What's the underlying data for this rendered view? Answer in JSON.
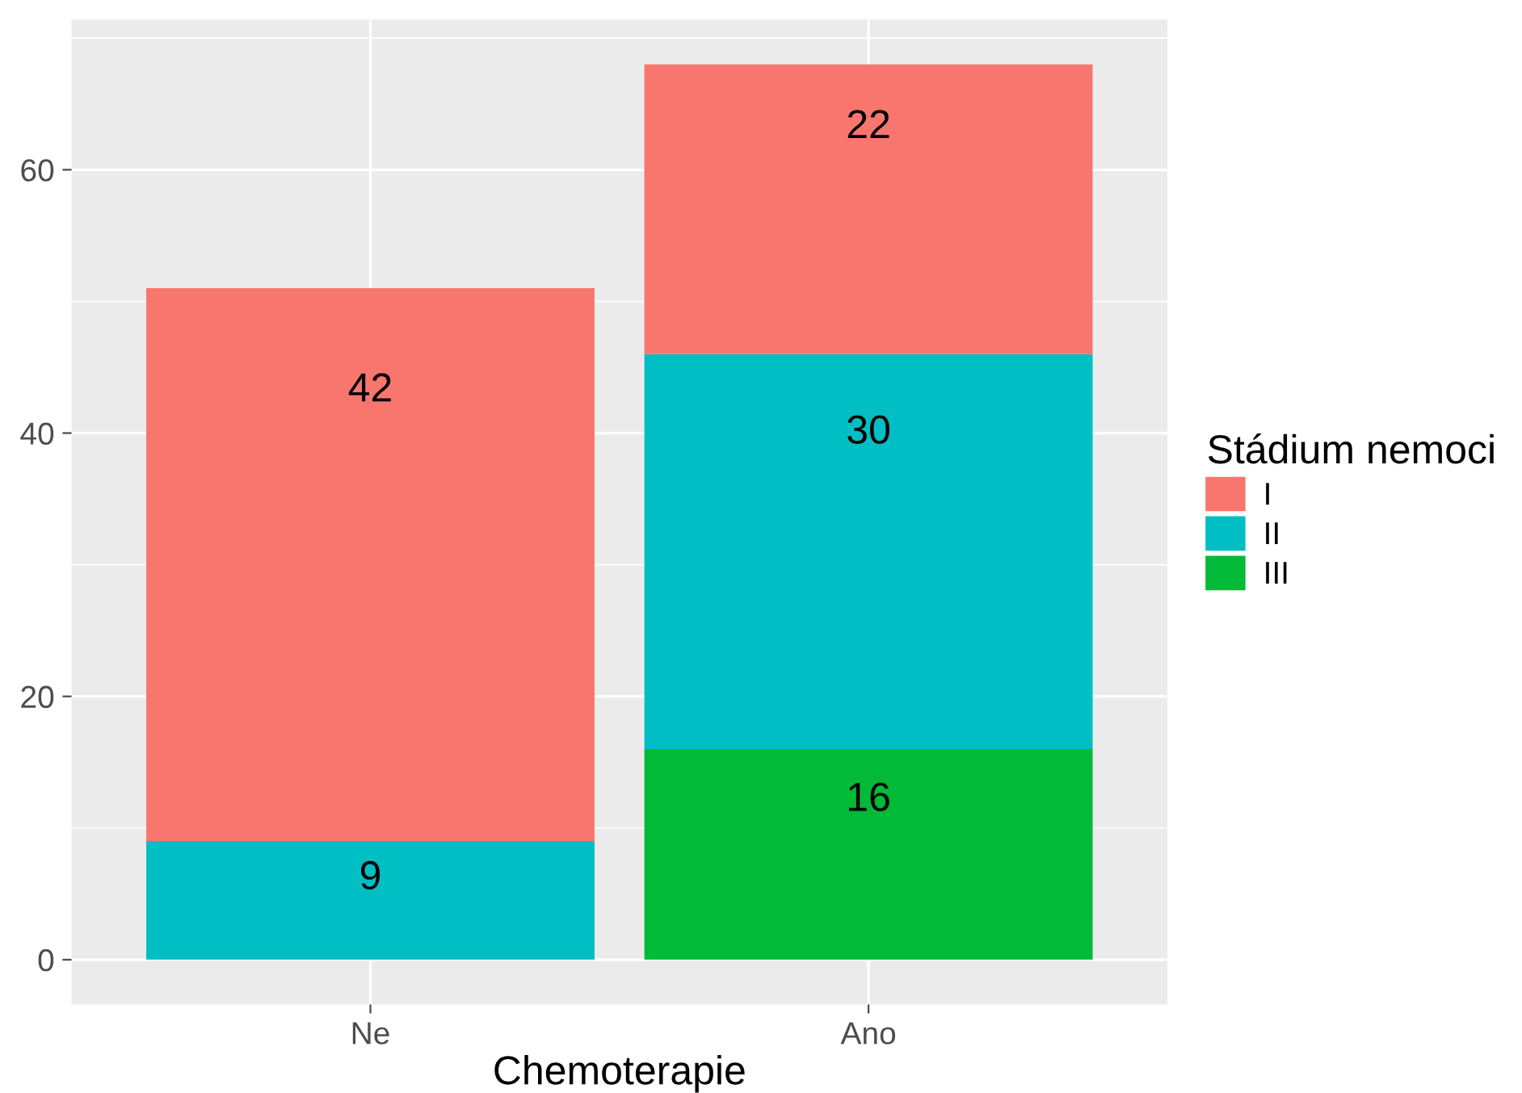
{
  "chart_data": {
    "type": "bar",
    "stacked": true,
    "xlabel": "Chemoterapie",
    "legend_title": "Stádium nemoci",
    "categories": [
      "Ne",
      "Ano"
    ],
    "series": [
      {
        "name": "III",
        "color": "#00ba38",
        "values": [
          0,
          16
        ],
        "value_labels": [
          null,
          "16"
        ]
      },
      {
        "name": "II",
        "color": "#00bfc4",
        "values": [
          9,
          30
        ],
        "value_labels": [
          "9",
          "30"
        ]
      },
      {
        "name": "I",
        "color": "#f8766d",
        "values": [
          42,
          22
        ],
        "value_labels": [
          "42",
          "22"
        ]
      }
    ],
    "ylim": [
      -3.4,
      71.4
    ],
    "yticks": [
      0,
      20,
      40,
      60
    ],
    "grid": true,
    "legend": "right"
  }
}
